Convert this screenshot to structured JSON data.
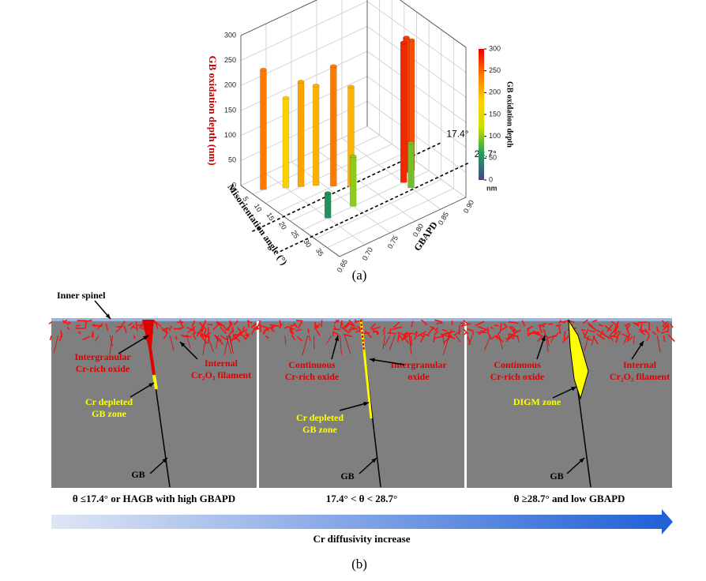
{
  "chart_data": {
    "type": "bar3d",
    "x_label": "GBAPD",
    "y_label": "Misorientation angle (°)",
    "z_label": "GB oxidation depth (nm)",
    "x": [
      0.67,
      0.7,
      0.72,
      0.74,
      0.76,
      0.78,
      0.7,
      0.75,
      0.85,
      0.87,
      0.88,
      0.85
    ],
    "y": [
      5,
      8,
      10,
      12,
      15,
      18,
      25,
      25,
      25,
      22,
      22,
      28
    ],
    "z": [
      240,
      180,
      210,
      200,
      240,
      200,
      50,
      100,
      280,
      270,
      260,
      90
    ],
    "xlim": [
      0.65,
      0.9
    ],
    "xticks": [
      {
        "value": 0.65,
        "label": "0.65"
      },
      {
        "value": 0.7,
        "label": "0.70"
      },
      0.75,
      {
        "value": 0.8,
        "label": "0.80"
      },
      0.85,
      {
        "value": 0.9,
        "label": "0.90"
      }
    ],
    "ylim": [
      0,
      40
    ],
    "yticks": [
      0,
      5,
      10,
      15,
      20,
      25,
      30,
      35
    ],
    "zlim": [
      0,
      300
    ],
    "zticks": [
      0,
      50,
      100,
      150,
      200,
      250,
      300
    ],
    "colorbar": {
      "title": "GB oxidation depth",
      "unit": "nm",
      "ticks": [
        0,
        50,
        100,
        150,
        200,
        250,
        300
      ]
    },
    "colormap": [
      "#45458c",
      "#1e9e55",
      "#c8e000",
      "#ffd000",
      "#ff7a00",
      "#e80000"
    ],
    "annotations": [
      {
        "value": 17.4,
        "label": "17.4°"
      },
      {
        "value": 28.7,
        "label": "28.7°"
      }
    ],
    "caption": "(a)"
  },
  "schematic": {
    "top_label": "Inner spinel",
    "panels": [
      {
        "labels": [
          {
            "lines": [
              "Intergranular",
              "Cr-rich oxide"
            ],
            "color": "#e00000"
          },
          {
            "lines": [
              "Internal",
              "Cr₂O₃ filament"
            ],
            "color": "#e00000"
          },
          {
            "lines": [
              "Cr depleted",
              "GB zone"
            ],
            "color": "#ffff00"
          },
          {
            "lines": [
              "GB"
            ],
            "color": "#000000"
          }
        ],
        "caption": "θ ≤17.4° or HAGB with high GBAPD"
      },
      {
        "labels": [
          {
            "lines": [
              "Continuous",
              "Cr-rich oxide"
            ],
            "color": "#e00000"
          },
          {
            "lines": [
              "Intergranular",
              "oxide"
            ],
            "color": "#e00000"
          },
          {
            "lines": [
              "Cr depleted",
              "GB zone"
            ],
            "color": "#ffff00"
          },
          {
            "lines": [
              "GB"
            ],
            "color": "#000000"
          }
        ],
        "caption": "17.4° < θ  < 28.7°"
      },
      {
        "labels": [
          {
            "lines": [
              "Continuous",
              "Cr-rich oxide"
            ],
            "color": "#e00000"
          },
          {
            "lines": [
              "Internal",
              "Cr₂O₃ filament"
            ],
            "color": "#e00000"
          },
          {
            "lines": [
              "DIGM zone"
            ],
            "color": "#ffff00"
          },
          {
            "lines": [
              "GB"
            ],
            "color": "#000000"
          }
        ],
        "caption": "θ ≥28.7° and low GBAPD"
      }
    ],
    "arrow_label": "Cr diffusivity increase",
    "caption": "(b)"
  }
}
